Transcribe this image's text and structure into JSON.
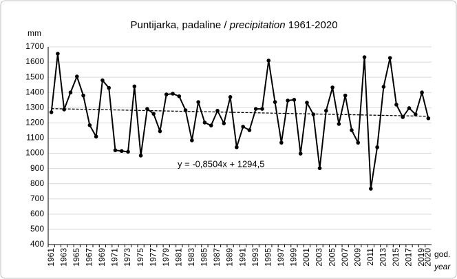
{
  "chart_data": {
    "type": "line",
    "title": {
      "text": "Puntijarka, padaline /",
      "italic": "precipitation",
      "suffix": "1961-2020"
    },
    "y_label": "mm",
    "x_label": "god.",
    "x_label_2": "year",
    "categories": [
      "1961",
      null,
      "1963",
      null,
      "1965",
      null,
      "1967",
      null,
      "1969",
      null,
      "1971",
      null,
      "1973",
      null,
      "1975",
      null,
      "1977",
      null,
      "1979",
      null,
      "1981",
      null,
      "1983",
      null,
      "1985",
      null,
      "1987",
      null,
      "1989",
      null,
      "1991",
      null,
      "1993",
      null,
      "1995",
      null,
      "1997",
      null,
      "1999",
      null,
      "2001",
      null,
      "2003",
      null,
      "2005",
      null,
      "2007",
      null,
      "2009",
      null,
      "2011",
      null,
      "2013",
      null,
      "2015",
      null,
      "2017",
      null,
      "2019",
      "2020"
    ],
    "series": [
      {
        "name": "precipitation",
        "color": "#000000",
        "values": [
          1270,
          1655,
          1288,
          1400,
          1505,
          1380,
          1185,
          1110,
          1480,
          1430,
          1020,
          1015,
          1010,
          1440,
          985,
          1292,
          1260,
          1145,
          1387,
          1392,
          1375,
          1283,
          1085,
          1337,
          1202,
          1183,
          1280,
          1197,
          1370,
          1040,
          1175,
          1152,
          1292,
          1292,
          1610,
          1337,
          1070,
          1347,
          1352,
          998,
          1333,
          1256,
          902,
          1280,
          1433,
          1193,
          1380,
          1152,
          1070,
          1632,
          767,
          1040,
          1437,
          1627,
          1320,
          1238,
          1297,
          1256,
          1400,
          1230
        ]
      }
    ],
    "trend": {
      "slope": -0.8504,
      "intercept": 1294.5,
      "label": "y = -0,8504x + 1294,5"
    },
    "ylim": [
      400,
      1700
    ],
    "yticks": [
      400,
      500,
      600,
      700,
      800,
      900,
      1000,
      1100,
      1200,
      1300,
      1400,
      1500,
      1600,
      1700
    ],
    "grid": true
  }
}
